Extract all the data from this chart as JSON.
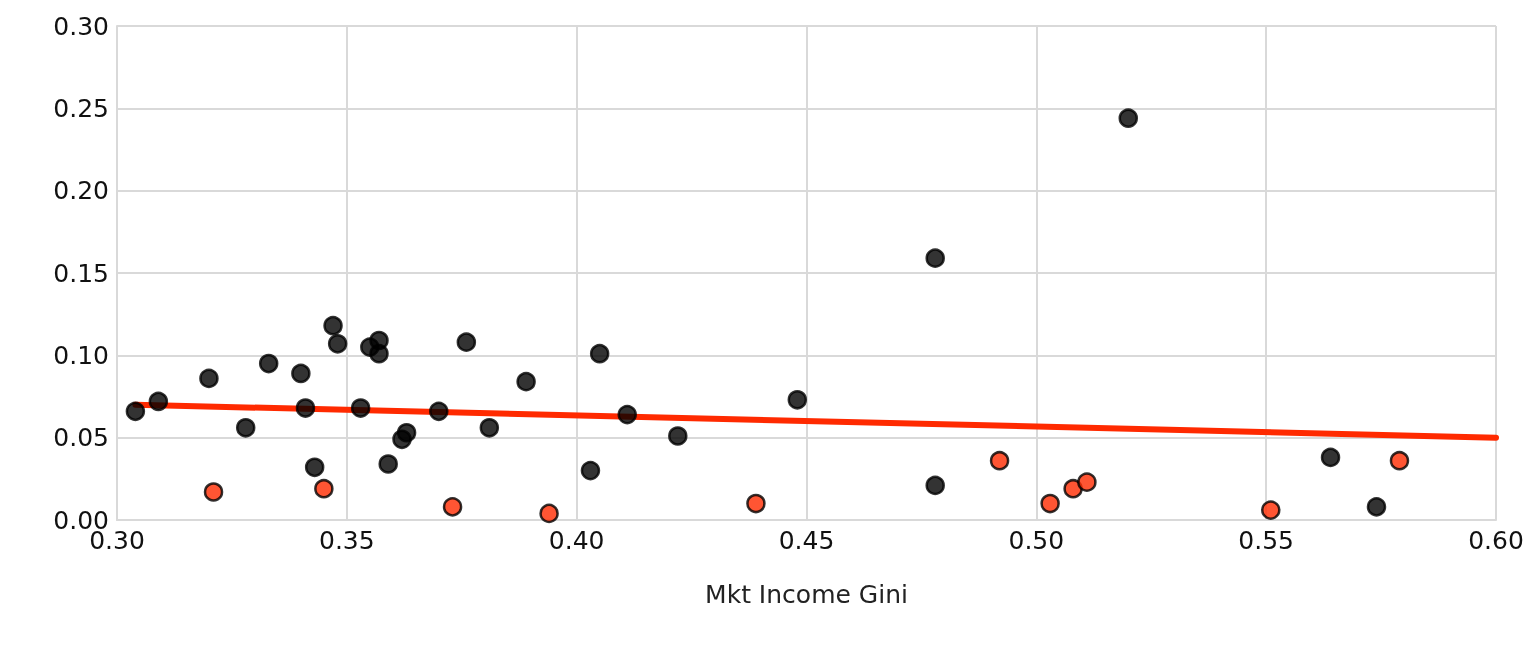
{
  "chart_data": {
    "type": "scatter",
    "xlabel": "Mkt Income Gini",
    "xlim": [
      0.3,
      0.6
    ],
    "xticks": [
      {
        "value": 0.3,
        "label": "0.30"
      },
      0.35,
      {
        "value": 0.4,
        "label": "0.40"
      },
      0.45,
      {
        "value": 0.5,
        "label": "0.50"
      },
      0.55,
      {
        "value": 0.6,
        "label": "0.60"
      }
    ],
    "ylim": [
      0,
      0.3
    ],
    "yticks": [
      {
        "value": 0,
        "label": "0.00"
      },
      0.05,
      {
        "value": 0.1,
        "label": "0.10"
      },
      0.15,
      {
        "value": 0.2,
        "label": "0.20"
      },
      0.25,
      {
        "value": 0.3,
        "label": "0.30"
      }
    ],
    "grid": true,
    "marker": "circle",
    "series": [
      {
        "color": "#000000",
        "x": [
          0.304,
          0.309,
          0.32,
          0.333,
          0.328,
          0.34,
          0.341,
          0.343,
          0.347,
          0.348,
          0.353,
          0.355,
          0.357,
          0.357,
          0.359,
          0.362,
          0.363,
          0.37,
          0.376,
          0.381,
          0.389,
          0.403,
          0.405,
          0.411,
          0.422,
          0.448,
          0.478,
          0.478,
          0.52,
          0.564,
          0.574
        ],
        "values": [
          0.066,
          0.072,
          0.086,
          0.095,
          0.056,
          0.089,
          0.068,
          0.032,
          0.118,
          0.107,
          0.068,
          0.105,
          0.109,
          0.101,
          0.034,
          0.049,
          0.053,
          0.066,
          0.108,
          0.056,
          0.084,
          0.03,
          0.101,
          0.064,
          0.051,
          0.073,
          0.159,
          0.021,
          0.244,
          0.038,
          0.008
        ]
      },
      {
        "color": "#ff2a00",
        "x": [
          0.321,
          0.345,
          0.373,
          0.394,
          0.439,
          0.492,
          0.503,
          0.508,
          0.511,
          0.551,
          0.579
        ],
        "values": [
          0.017,
          0.019,
          0.008,
          0.004,
          0.01,
          0.036,
          0.01,
          0.019,
          0.023,
          0.006,
          0.036
        ]
      },
      {
        "type": "line",
        "color": "#ff2a00",
        "marker": "none",
        "line_style": "solid",
        "x": [
          0.304,
          0.6
        ],
        "values": [
          0.07,
          0.05
        ]
      }
    ]
  }
}
